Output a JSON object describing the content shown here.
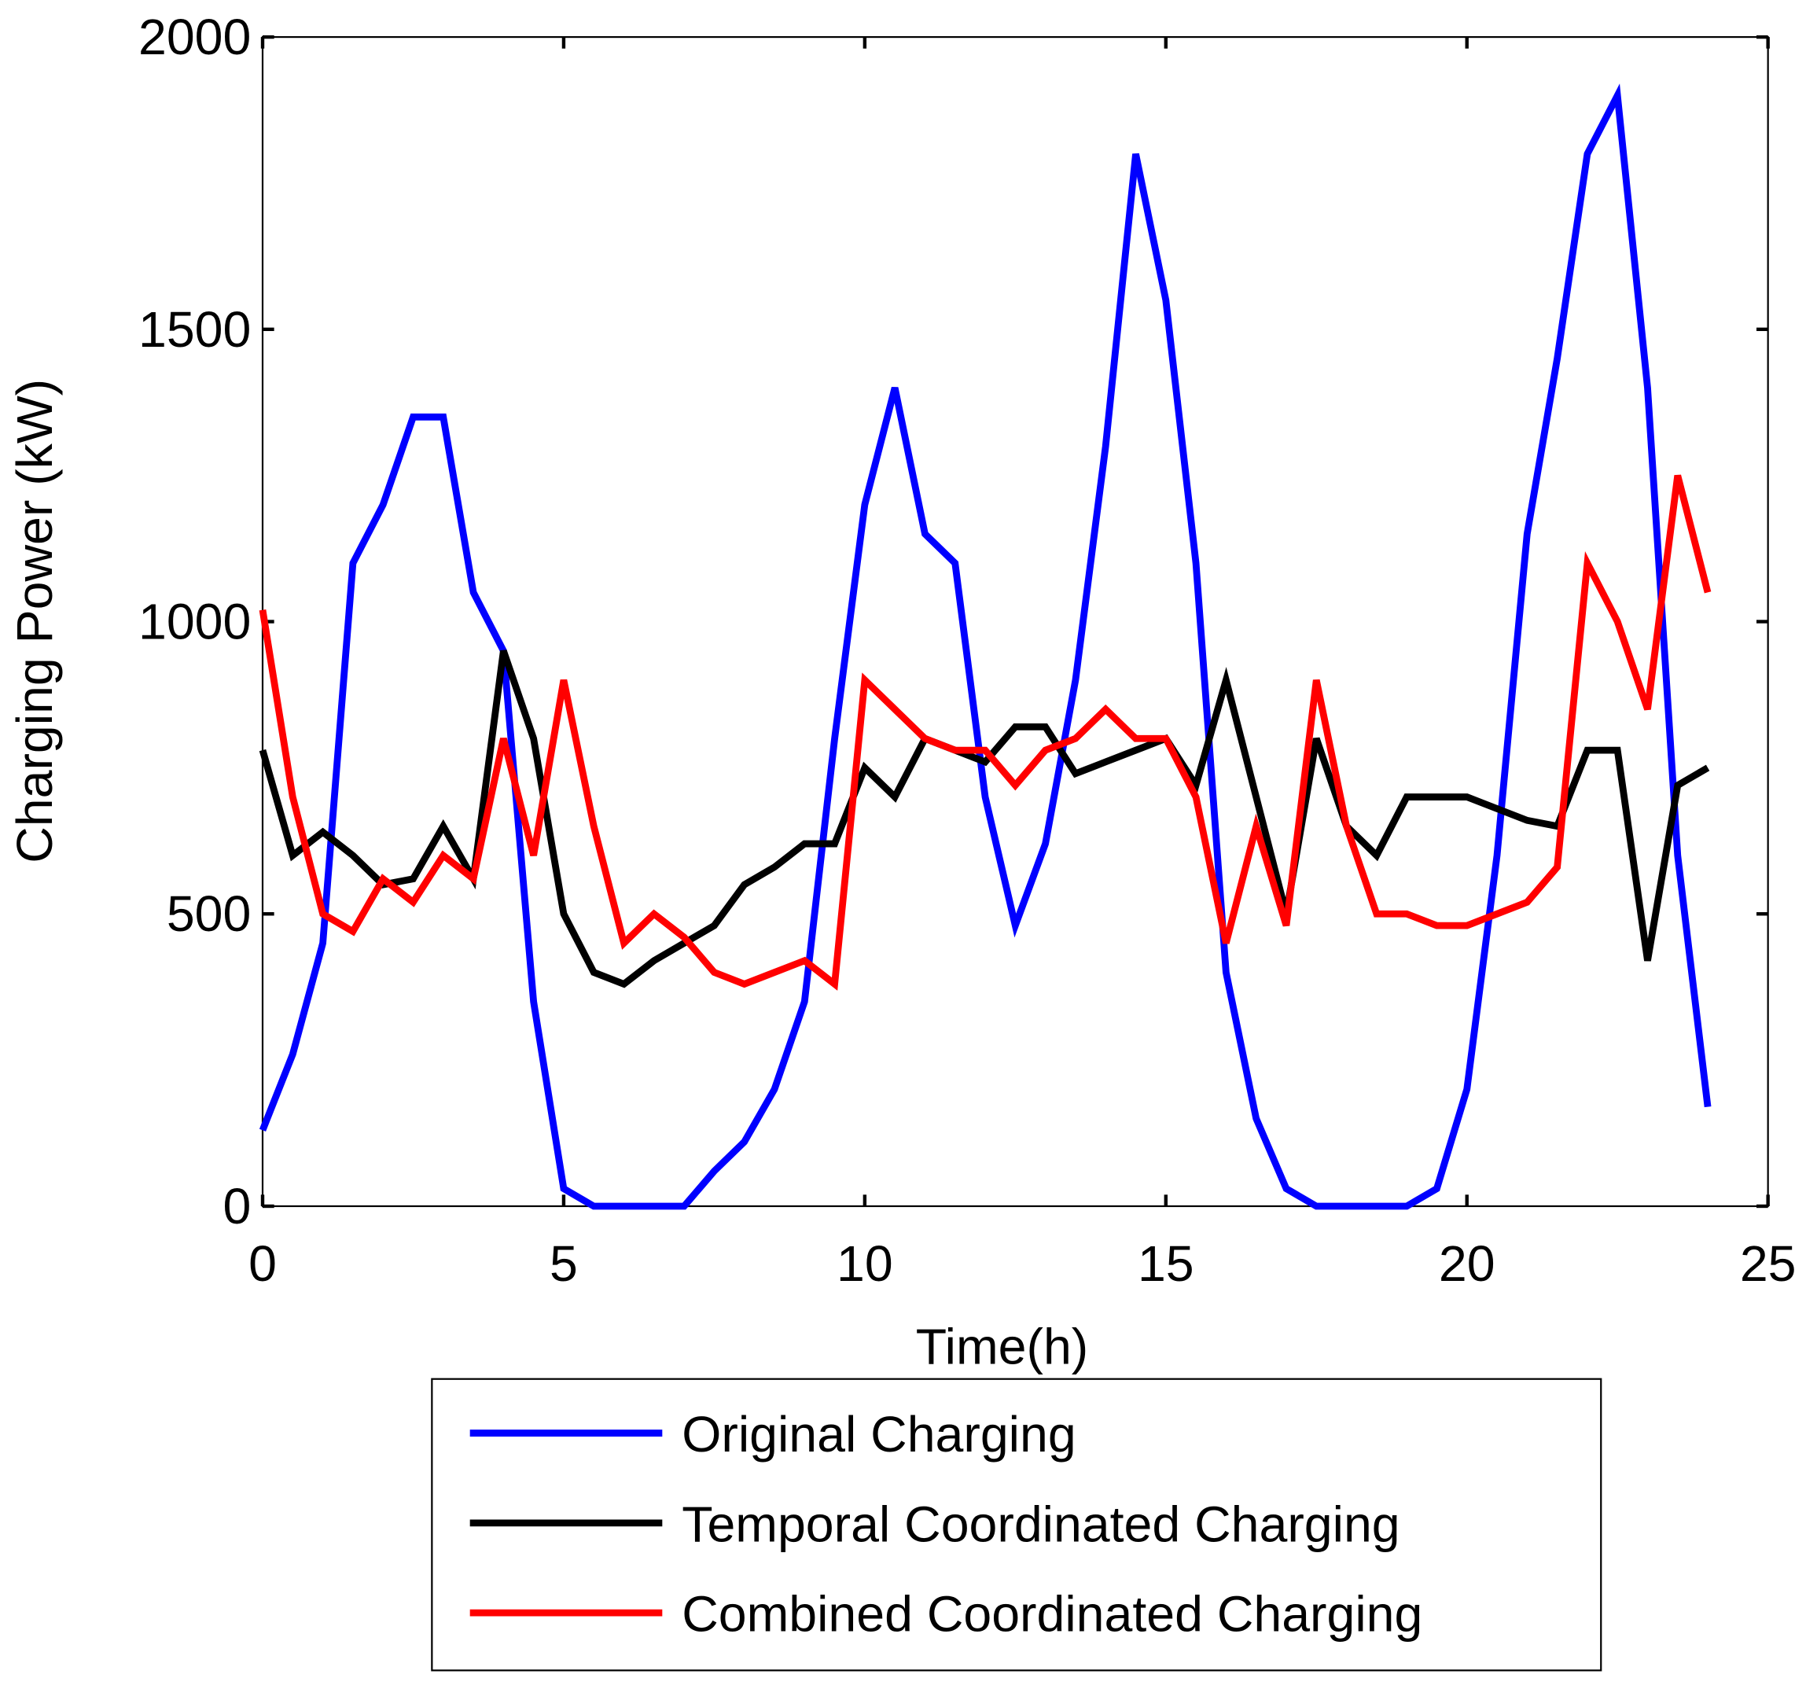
{
  "chart_data": {
    "type": "line",
    "xlabel": "Time(h)",
    "ylabel": "Charging Power (kW)",
    "xlim": [
      0,
      25
    ],
    "xticks": [
      0,
      5,
      10,
      15,
      20,
      25
    ],
    "ylim": [
      0,
      2000
    ],
    "yticks": [
      0,
      500,
      1000,
      1500,
      2000
    ],
    "legend": "bottom",
    "x": [
      0,
      0.5,
      1,
      1.5,
      2,
      2.5,
      3,
      3.5,
      4,
      4.5,
      5,
      5.5,
      6,
      6.5,
      7,
      7.5,
      8,
      8.5,
      9,
      9.5,
      10,
      10.5,
      11,
      11.5,
      12,
      12.5,
      13,
      13.5,
      14,
      14.5,
      15,
      15.5,
      16,
      16.5,
      17,
      17.5,
      18,
      18.5,
      19,
      19.5,
      20,
      20.5,
      21,
      21.5,
      22,
      22.5,
      23,
      23.5,
      24
    ],
    "series": [
      {
        "name": "Original Charging",
        "color": "#0000ff",
        "values": [
          130,
          260,
          450,
          1100,
          1200,
          1350,
          1350,
          1050,
          950,
          350,
          30,
          0,
          0,
          0,
          0,
          60,
          110,
          200,
          350,
          800,
          1200,
          1400,
          1150,
          1100,
          700,
          480,
          620,
          900,
          1300,
          1800,
          1550,
          1100,
          400,
          150,
          30,
          0,
          0,
          0,
          0,
          30,
          200,
          600,
          1150,
          1450,
          1800,
          1900,
          1400,
          600,
          170
        ]
      },
      {
        "name": "Temporal Coordinated Charging",
        "color": "#000000",
        "values": [
          780,
          600,
          640,
          600,
          550,
          560,
          650,
          560,
          950,
          800,
          500,
          400,
          380,
          420,
          450,
          480,
          550,
          580,
          620,
          620,
          750,
          700,
          800,
          780,
          760,
          820,
          820,
          740,
          760,
          780,
          800,
          720,
          900,
          700,
          500,
          800,
          650,
          600,
          700,
          700,
          700,
          680,
          660,
          650,
          780,
          780,
          420,
          720,
          750
        ]
      },
      {
        "name": "Combined Coordinated Charging",
        "color": "#ff0000",
        "values": [
          1020,
          700,
          500,
          470,
          560,
          520,
          600,
          560,
          800,
          600,
          900,
          650,
          450,
          500,
          460,
          400,
          380,
          400,
          420,
          380,
          900,
          850,
          800,
          780,
          780,
          720,
          780,
          800,
          850,
          800,
          800,
          700,
          450,
          650,
          480,
          900,
          650,
          500,
          500,
          480,
          480,
          500,
          520,
          580,
          1100,
          1000,
          850,
          1250,
          1050
        ]
      }
    ]
  }
}
